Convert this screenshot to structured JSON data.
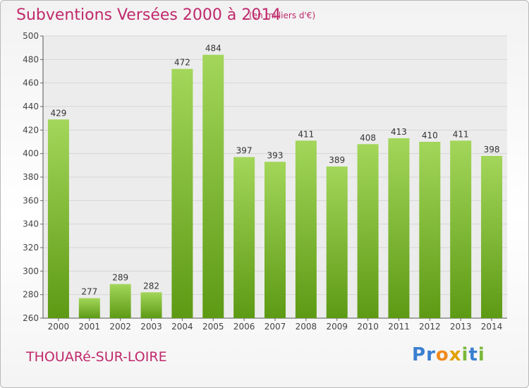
{
  "header": {
    "title": "Subventions Versées 2000 à 2014",
    "unit": "(en milliers d'€)"
  },
  "footer": {
    "town": "THOUARé-SUR-LOIRE",
    "logo_letters": [
      {
        "char": "P",
        "color": "#3a7fd0"
      },
      {
        "char": "r",
        "color": "#3a7fd0"
      },
      {
        "char": "o",
        "color": "#f08a1c"
      },
      {
        "char": "x",
        "color": "#e0a100"
      },
      {
        "char": "i",
        "color": "#7ab83a"
      },
      {
        "char": "t",
        "color": "#3a7fd0"
      },
      {
        "char": "i",
        "color": "#7ab83a"
      }
    ]
  },
  "colors": {
    "bar_light": "#a3d65a",
    "bar_dark": "#5d9a14",
    "grid": "#d6d6d6",
    "plot_bg": "#ececec"
  },
  "chart_data": {
    "type": "bar",
    "categories": [
      "2000",
      "2001",
      "2002",
      "2003",
      "2004",
      "2005",
      "2006",
      "2007",
      "2008",
      "2009",
      "2010",
      "2011",
      "2012",
      "2013",
      "2014"
    ],
    "values": [
      429,
      277,
      289,
      282,
      472,
      484,
      397,
      393,
      411,
      389,
      408,
      413,
      410,
      411,
      398
    ],
    "ylim": [
      260,
      500
    ],
    "yticks": [
      260,
      280,
      300,
      320,
      340,
      360,
      380,
      400,
      420,
      440,
      460,
      480,
      500
    ],
    "grid": true
  }
}
